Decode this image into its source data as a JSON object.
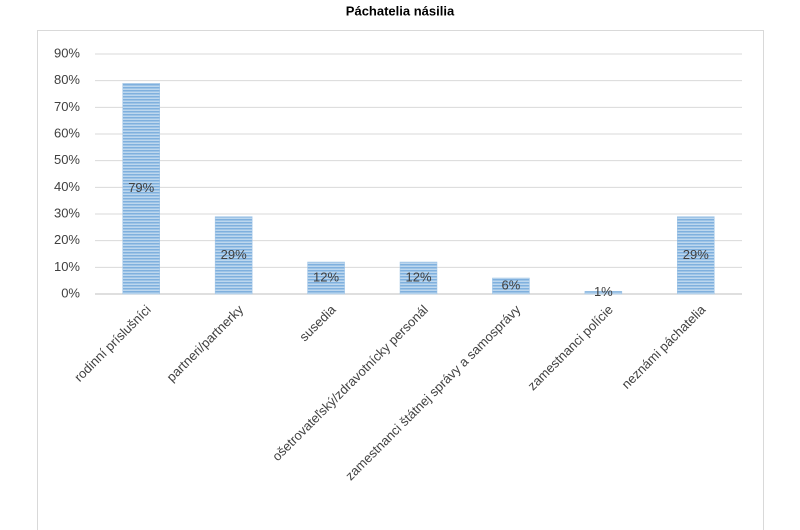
{
  "chart_data": {
    "type": "bar",
    "title": "Páchatelia násilia",
    "categories": [
      "rodinní príslušníci",
      "partneri/partnerky",
      "susedia",
      "ošetrovateľský/zdravotnícky personál",
      "zamestnanci štátnej správy a samosprávy",
      "zamestnanci polície",
      "neznámi páchatelia"
    ],
    "values": [
      79,
      29,
      12,
      12,
      6,
      1,
      29
    ],
    "value_labels": [
      "79%",
      "29%",
      "12%",
      "12%",
      "6%",
      "1%",
      "29%"
    ],
    "color": "#9dc3e6",
    "ylim": [
      0,
      90
    ],
    "yticks": [
      {
        "value": 0,
        "label": "0%"
      },
      {
        "value": 10,
        "label": "10%"
      },
      {
        "value": 20,
        "label": "20%"
      },
      {
        "value": 30,
        "label": "30%"
      },
      {
        "value": 40,
        "label": "40%"
      },
      {
        "value": 50,
        "label": "50%"
      },
      {
        "value": 60,
        "label": "60%"
      },
      {
        "value": 70,
        "label": "70%"
      },
      {
        "value": 80,
        "label": "80%"
      },
      {
        "value": 90,
        "label": "90%"
      }
    ],
    "grid": true
  }
}
